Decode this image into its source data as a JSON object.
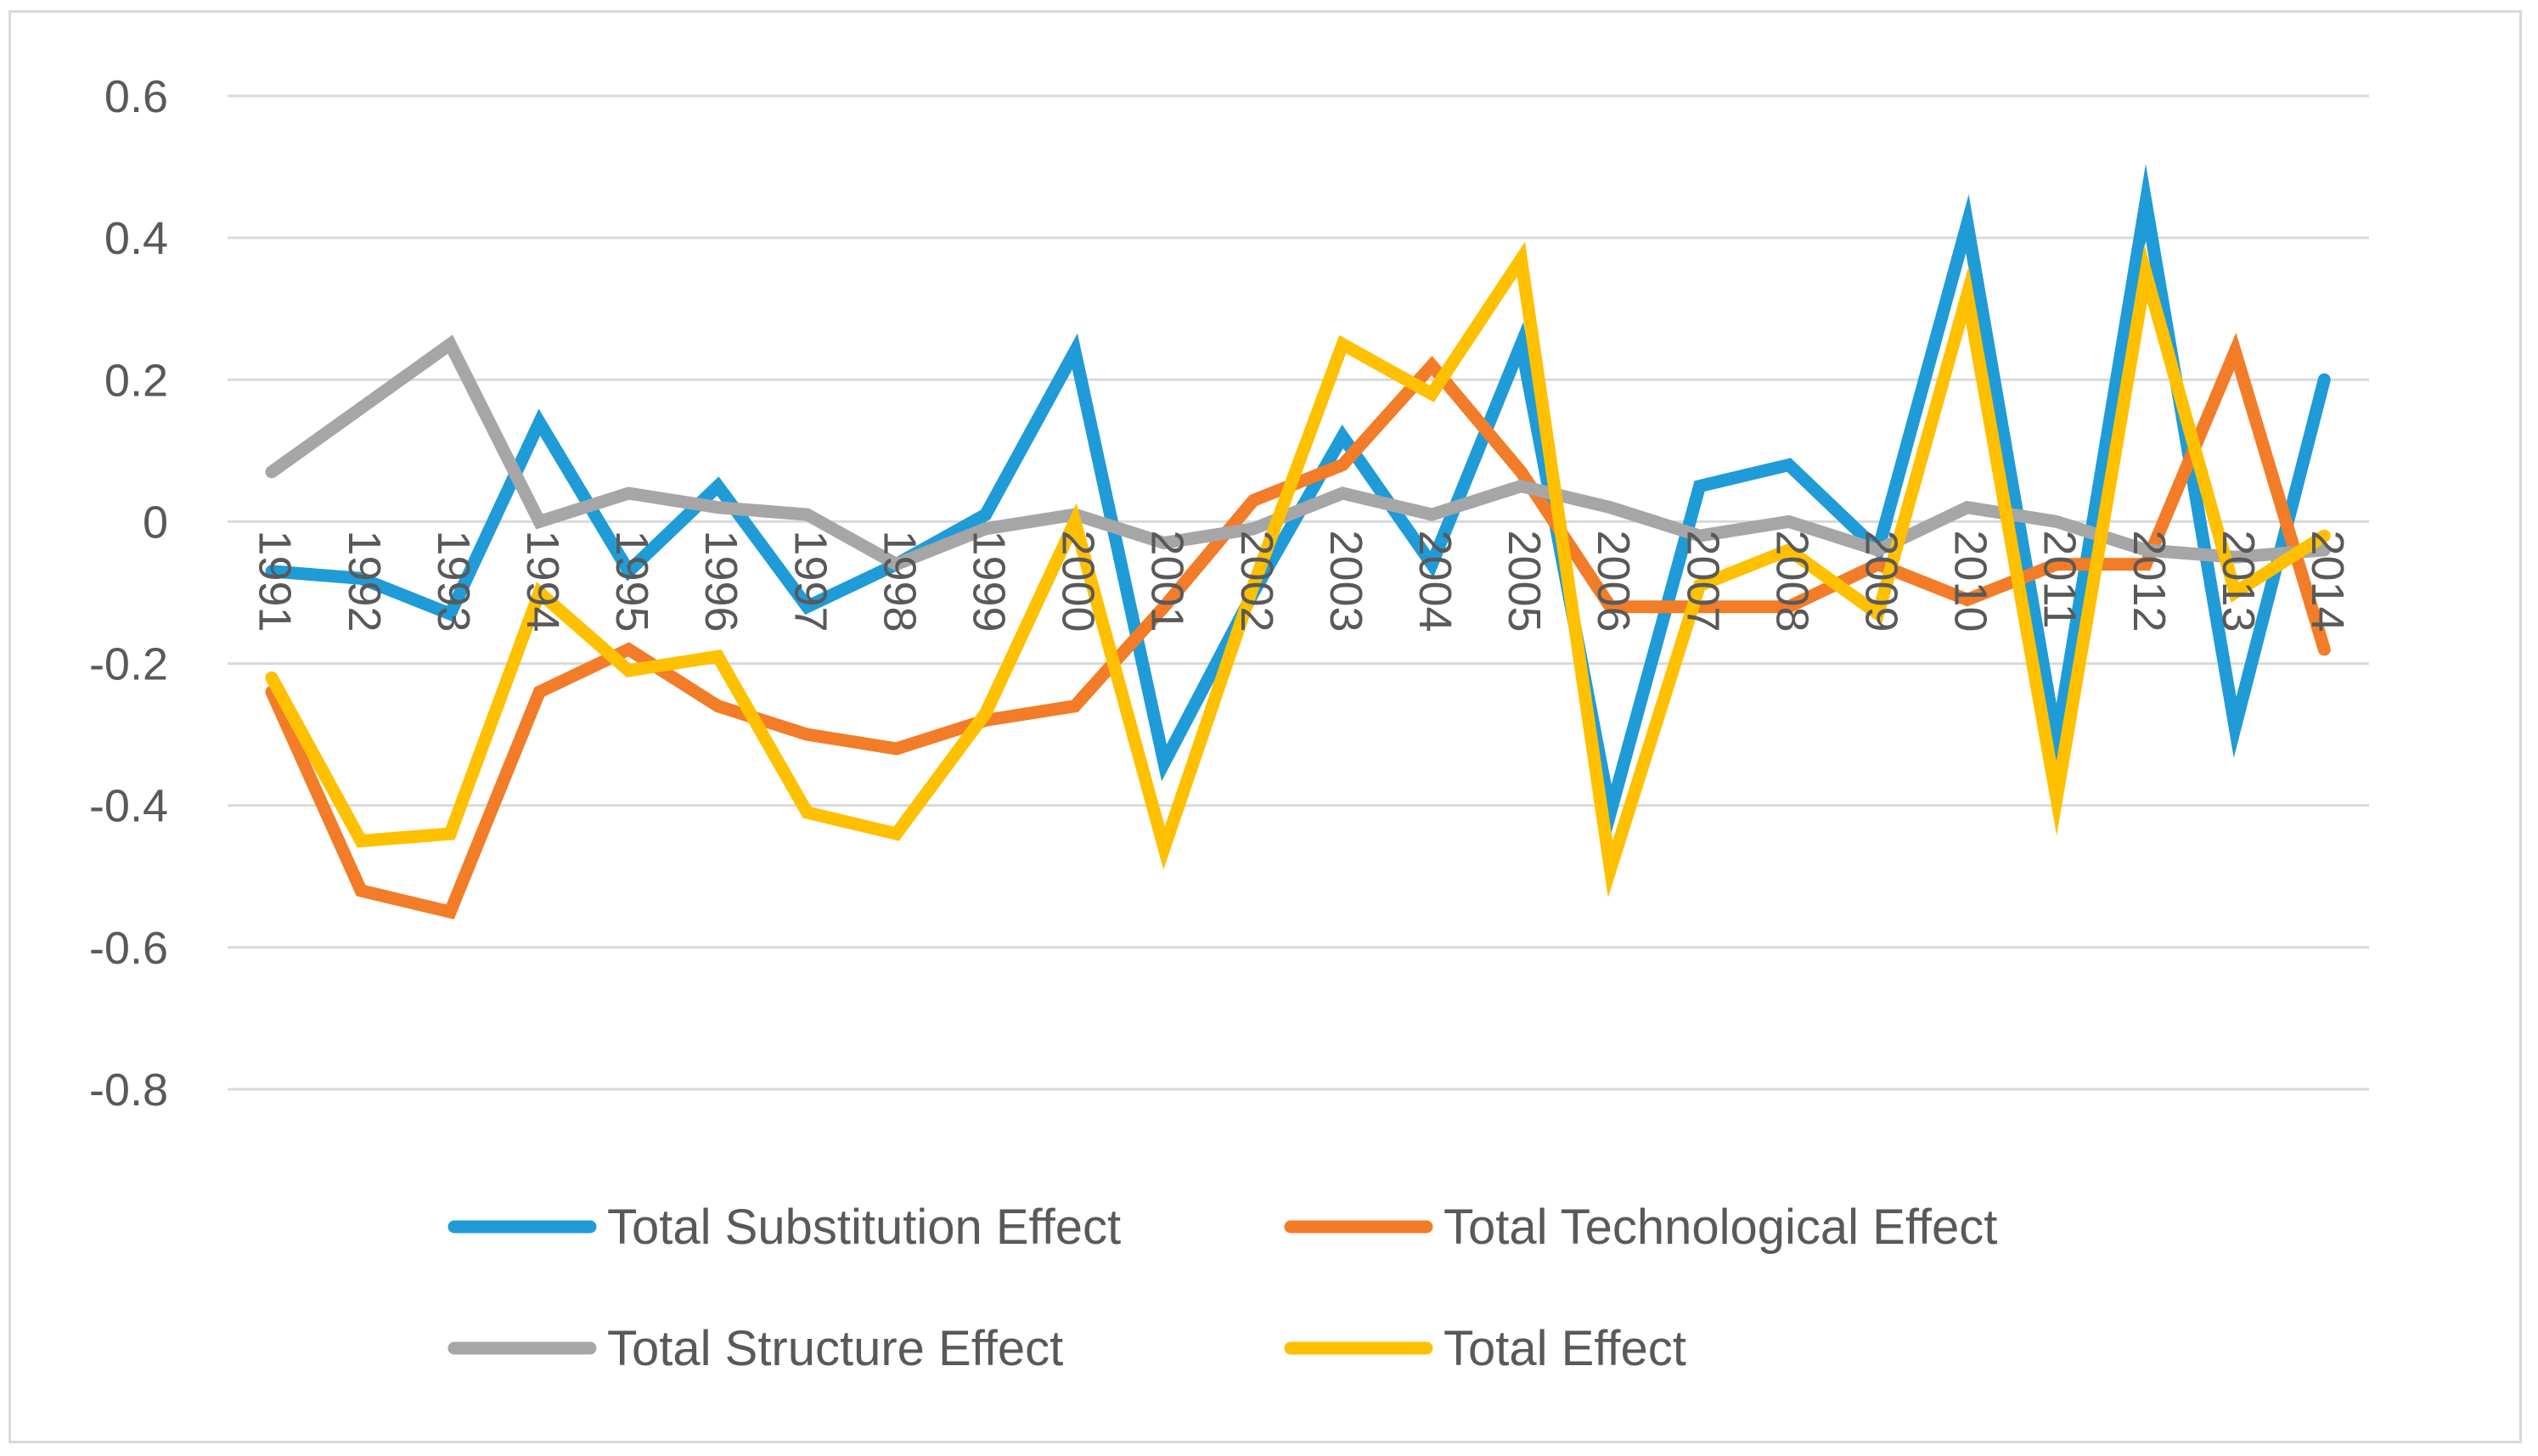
{
  "chart_data": {
    "type": "line",
    "title": "",
    "xlabel": "",
    "ylabel": "",
    "ylim": [
      -0.8,
      0.6
    ],
    "yticks": [
      "0.6",
      "0.4",
      "0.2",
      "0",
      "-0.2",
      "-0.4",
      "-0.6",
      "-0.8"
    ],
    "ytick_values": [
      0.6,
      0.4,
      0.2,
      0,
      -0.2,
      -0.4,
      -0.6,
      -0.8
    ],
    "grid": true,
    "legend_position": "bottom",
    "categories": [
      "1991",
      "1992",
      "1993",
      "1994",
      "1995",
      "1996",
      "1997",
      "1998",
      "1999",
      "2000",
      "2001",
      "2002",
      "2003",
      "2004",
      "2005",
      "2006",
      "2007",
      "2008",
      "2009",
      "2010",
      "2011",
      "2012",
      "2013",
      "2014"
    ],
    "series": [
      {
        "name": "Total Substitution Effect",
        "color": "#1f9bd7",
        "values": [
          -0.07,
          -0.08,
          -0.13,
          0.14,
          -0.07,
          0.05,
          -0.12,
          -0.06,
          0.01,
          0.24,
          -0.34,
          -0.1,
          0.12,
          -0.06,
          0.25,
          -0.41,
          0.05,
          0.08,
          -0.04,
          0.42,
          -0.31,
          0.45,
          -0.29,
          0.2
        ]
      },
      {
        "name": "Total Technological Effect",
        "color": "#f27c28",
        "values": [
          -0.24,
          -0.52,
          -0.55,
          -0.24,
          -0.18,
          -0.26,
          -0.3,
          -0.32,
          -0.28,
          -0.26,
          -0.12,
          0.03,
          0.08,
          0.22,
          0.07,
          -0.12,
          -0.12,
          -0.12,
          -0.06,
          -0.11,
          -0.06,
          -0.06,
          0.24,
          -0.18
        ]
      },
      {
        "name": "Total Structure Effect",
        "color": "#a6a6a6",
        "values": [
          0.07,
          0.16,
          0.25,
          0.0,
          0.04,
          0.02,
          0.01,
          -0.06,
          -0.01,
          0.01,
          -0.03,
          -0.01,
          0.04,
          0.01,
          0.05,
          0.02,
          -0.02,
          0.0,
          -0.04,
          0.02,
          0.0,
          -0.04,
          -0.05,
          -0.04
        ]
      },
      {
        "name": "Total Effect",
        "color": "#ffc000",
        "values": [
          -0.22,
          -0.45,
          -0.44,
          -0.1,
          -0.21,
          -0.19,
          -0.41,
          -0.44,
          -0.27,
          0.0,
          -0.46,
          -0.09,
          0.25,
          0.18,
          0.37,
          -0.49,
          -0.09,
          -0.04,
          -0.13,
          0.32,
          -0.39,
          0.35,
          -0.1,
          -0.02
        ]
      }
    ]
  }
}
